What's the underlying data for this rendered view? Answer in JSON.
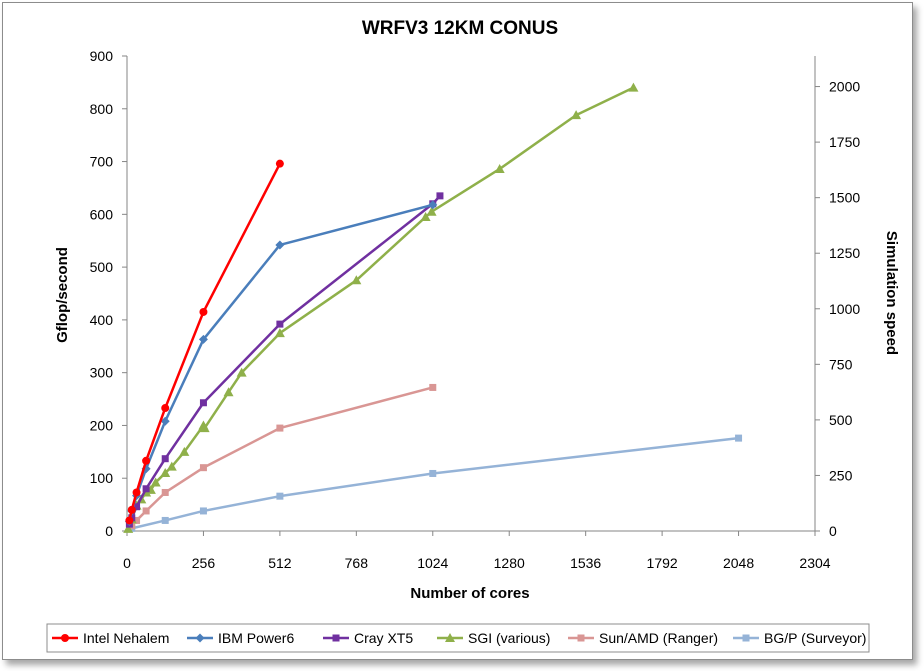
{
  "chart_data": {
    "type": "line",
    "title": "WRFV3 12KM CONUS",
    "xlabel": "Number of cores",
    "ylabel": "Gflop/second",
    "y2label": "Simulation speed",
    "xlim": [
      0,
      2304
    ],
    "ylim": [
      0,
      900
    ],
    "y2lim": [
      0,
      2137.5
    ],
    "xticks": [
      "0",
      "256",
      "512",
      "768",
      "1024",
      "1280",
      "1536",
      "1792",
      "2048",
      "2304"
    ],
    "yticks": [
      "0",
      "100",
      "200",
      "300",
      "400",
      "500",
      "600",
      "700",
      "800",
      "900"
    ],
    "y2ticks": [
      "0",
      "250",
      "500",
      "750",
      "1000",
      "1250",
      "1500",
      "1750",
      "2000"
    ],
    "grid": false,
    "legend_position": "bottom",
    "series": [
      {
        "name": "Intel Nehalem",
        "color": "#ff0000",
        "marker": "circle",
        "points": [
          [
            8,
            20
          ],
          [
            16,
            40
          ],
          [
            32,
            73
          ],
          [
            64,
            133
          ],
          [
            128,
            233
          ],
          [
            256,
            415
          ],
          [
            512,
            696
          ]
        ]
      },
      {
        "name": "IBM Power6",
        "color": "#4a7ebb",
        "marker": "diamond",
        "points": [
          [
            8,
            18
          ],
          [
            16,
            38
          ],
          [
            32,
            67
          ],
          [
            64,
            118
          ],
          [
            128,
            208
          ],
          [
            256,
            363
          ],
          [
            512,
            542
          ],
          [
            1024,
            618
          ]
        ]
      },
      {
        "name": "Cray XT5",
        "color": "#7030a0",
        "marker": "square",
        "points": [
          [
            8,
            13
          ],
          [
            16,
            25
          ],
          [
            32,
            46
          ],
          [
            64,
            80
          ],
          [
            128,
            137
          ],
          [
            256,
            243
          ],
          [
            512,
            392
          ],
          [
            1024,
            620
          ],
          [
            1048,
            635
          ]
        ]
      },
      {
        "name": "SGI (various)",
        "color": "#8fb04a",
        "marker": "triangle",
        "points": [
          [
            4,
            4
          ],
          [
            16,
            22
          ],
          [
            32,
            48
          ],
          [
            48,
            60
          ],
          [
            64,
            73
          ],
          [
            80,
            78
          ],
          [
            96,
            92
          ],
          [
            128,
            110
          ],
          [
            150,
            122
          ],
          [
            192,
            150
          ],
          [
            256,
            200
          ],
          [
            260,
            195
          ],
          [
            340,
            263
          ],
          [
            384,
            300
          ],
          [
            512,
            375
          ],
          [
            768,
            475
          ],
          [
            1000,
            595
          ],
          [
            1020,
            605
          ],
          [
            1248,
            686
          ],
          [
            1504,
            788
          ],
          [
            1696,
            840
          ]
        ]
      },
      {
        "name": "Sun/AMD (Ranger)",
        "color": "#d99694",
        "marker": "square",
        "points": [
          [
            16,
            10
          ],
          [
            32,
            20
          ],
          [
            64,
            38
          ],
          [
            128,
            73
          ],
          [
            256,
            120
          ],
          [
            512,
            195
          ],
          [
            1024,
            272
          ]
        ]
      },
      {
        "name": "BG/P (Surveyor)",
        "color": "#95b3d7",
        "marker": "square",
        "points": [
          [
            16,
            5
          ],
          [
            128,
            20
          ],
          [
            256,
            38
          ],
          [
            512,
            66
          ],
          [
            1024,
            109
          ],
          [
            2048,
            176
          ]
        ]
      }
    ]
  }
}
